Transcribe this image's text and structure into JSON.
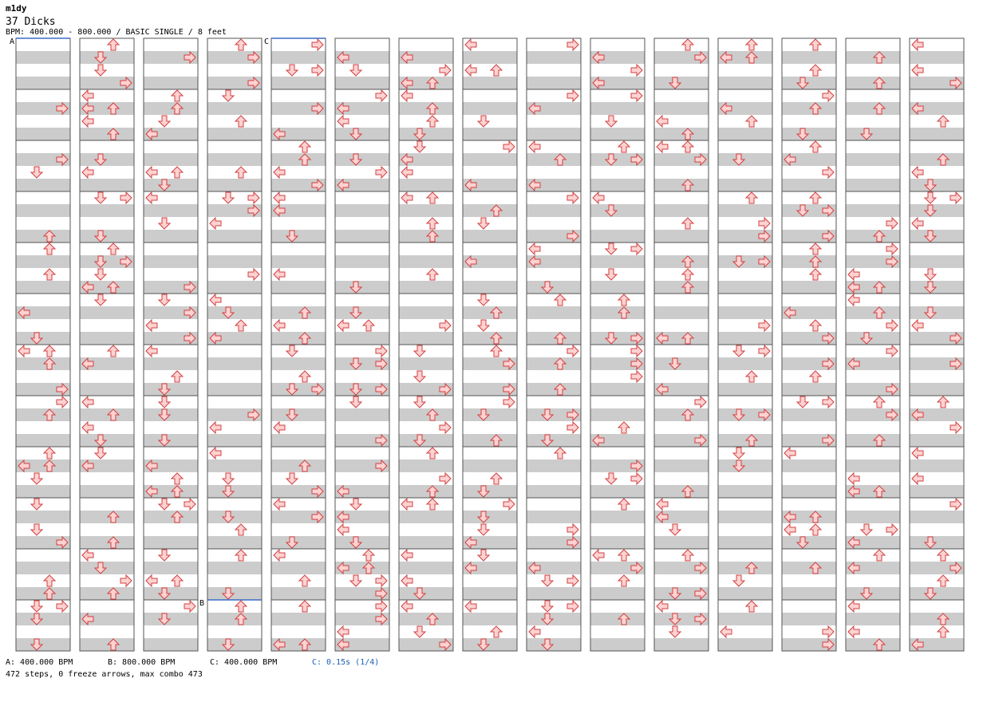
{
  "header": {
    "artist": "m1dy",
    "title": "37 Dicks",
    "info": "BPM: 400.000 - 800.000 / BASIC SINGLE / 8 feet"
  },
  "markers": {
    "a": "A",
    "b": "B",
    "c": "C"
  },
  "legend": {
    "a": "A: 400.000 BPM",
    "b": "B: 800.000 BPM",
    "c": "C: 400.000 BPM",
    "stop": "C: 0.15s (1/4)"
  },
  "stats": "472 steps, 0 freeze arrows, max combo 473",
  "colors": {
    "arrow_fill": "#ffd2d2",
    "arrow_stroke": "#d04040",
    "shade": "#cccccc",
    "stop": "#1a5fb4",
    "bpm_line": "#3b6cc6"
  },
  "chart_data": {
    "type": "table",
    "description_units": "columns 1-15, measures 1-12 per column; arrows L D U R",
    "lanes": [
      "L",
      "D",
      "U",
      "R"
    ]
  }
}
